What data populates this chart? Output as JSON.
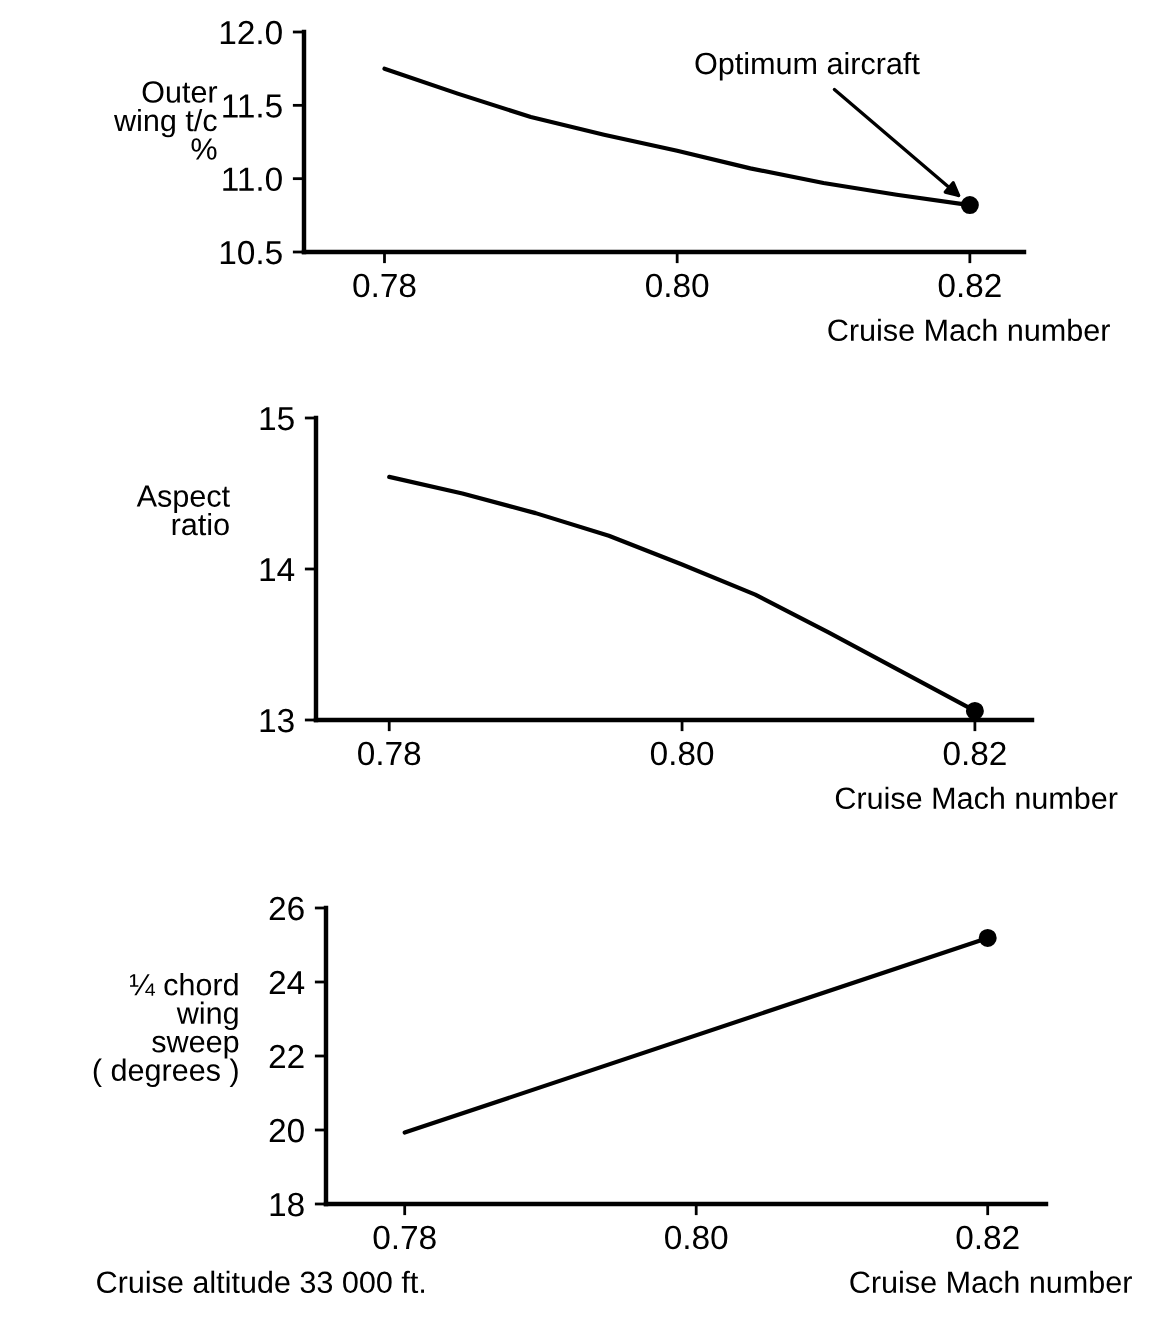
{
  "chart_data": [
    {
      "type": "line",
      "ylabel": "Outer\nwing t/c\n%",
      "xlabel": "Cruise Mach number",
      "xlim": [
        0.7745,
        0.8237
      ],
      "ylim": [
        10.5,
        12.0
      ],
      "xticks": [
        {
          "value": 0.78,
          "label": "0.78"
        },
        {
          "value": 0.8,
          "label": "0.80"
        },
        {
          "value": 0.82,
          "label": "0.82"
        }
      ],
      "yticks": [
        {
          "value": 10.5,
          "label": "10.5"
        },
        {
          "value": 11.0,
          "label": "11.0"
        },
        {
          "value": 11.5,
          "label": "11.5"
        },
        {
          "value": 12.0,
          "label": "12.0"
        }
      ],
      "grid": false,
      "series": [
        {
          "color": "#000000",
          "x": [
            0.78,
            0.785,
            0.79,
            0.795,
            0.8,
            0.805,
            0.81,
            0.815,
            0.82
          ],
          "values": [
            11.75,
            11.58,
            11.42,
            11.3,
            11.19,
            11.07,
            10.97,
            10.89,
            10.82
          ]
        },
        {
          "type": "scatter",
          "marker": "circle",
          "color": "#000000",
          "x": [
            0.82
          ],
          "values": [
            10.82
          ]
        }
      ],
      "annotations": [
        {
          "text": "Optimum aircraft",
          "x": 0.82,
          "y": 10.82
        }
      ]
    },
    {
      "type": "line",
      "ylabel": "Aspect\nratio",
      "xlabel": "Cruise Mach number",
      "xlim": [
        0.775,
        0.8239
      ],
      "ylim": [
        13,
        15
      ],
      "xticks": [
        {
          "value": 0.78,
          "label": "0.78"
        },
        {
          "value": 0.8,
          "label": "0.80"
        },
        {
          "value": 0.82,
          "label": "0.82"
        }
      ],
      "yticks": [
        13,
        14,
        15
      ],
      "grid": false,
      "series": [
        {
          "color": "#000000",
          "x": [
            0.78,
            0.785,
            0.79,
            0.795,
            0.8,
            0.805,
            0.81,
            0.815,
            0.82
          ],
          "values": [
            14.61,
            14.5,
            14.37,
            14.22,
            14.03,
            13.83,
            13.58,
            13.32,
            13.06
          ]
        },
        {
          "type": "scatter",
          "marker": "circle",
          "color": "#000000",
          "x": [
            0.82
          ],
          "values": [
            13.06
          ]
        }
      ]
    },
    {
      "type": "line",
      "ylabel": "¼ chord\nwing\nsweep\n( degrees )",
      "xlabel": "Cruise Mach number",
      "xlim": [
        0.7746,
        0.824
      ],
      "ylim": [
        18,
        26
      ],
      "xticks": [
        {
          "value": 0.78,
          "label": "0.78"
        },
        {
          "value": 0.8,
          "label": "0.80"
        },
        {
          "value": 0.82,
          "label": "0.82"
        }
      ],
      "yticks": [
        18,
        20,
        22,
        24,
        26
      ],
      "grid": false,
      "series": [
        {
          "color": "#000000",
          "x": [
            0.78,
            0.82
          ],
          "values": [
            19.93,
            25.19
          ]
        },
        {
          "type": "scatter",
          "marker": "circle",
          "color": "#000000",
          "x": [
            0.82
          ],
          "values": [
            25.19
          ]
        }
      ],
      "annotations": [
        "Cruise altitude 33 000 ft."
      ]
    }
  ]
}
